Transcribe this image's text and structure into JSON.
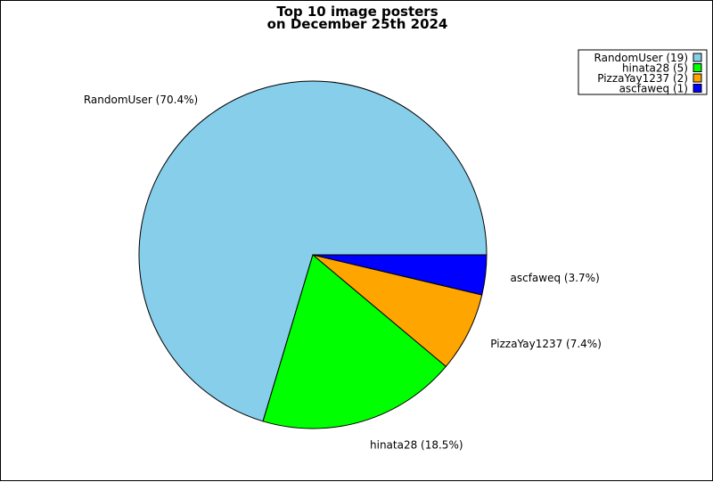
{
  "chart_data": {
    "type": "pie",
    "title": "Top 10 image posters",
    "subtitle": "on December 25th 2024",
    "legend_position": "top-right",
    "slices": [
      {
        "name": "RandomUser",
        "count": 19,
        "percent": 70.4,
        "label": "RandomUser (70.4%)",
        "legend": "RandomUser (19)",
        "color": "#87CEEB"
      },
      {
        "name": "hinata28",
        "count": 5,
        "percent": 18.5,
        "label": "hinata28 (18.5%)",
        "legend": "hinata28 (5)",
        "color": "#00FF00"
      },
      {
        "name": "PizzaYay1237",
        "count": 2,
        "percent": 7.4,
        "label": "PizzaYay1237 (7.4%)",
        "legend": "PizzaYay1237 (2)",
        "color": "#FFA500"
      },
      {
        "name": "ascfaweq",
        "count": 1,
        "percent": 3.7,
        "label": "ascfaweq (3.7%)",
        "legend": "ascfaweq (1)",
        "color": "#0000FF"
      }
    ]
  }
}
